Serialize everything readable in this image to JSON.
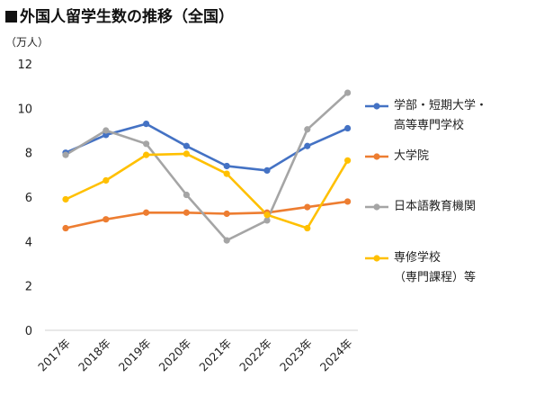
{
  "chart_data": {
    "type": "line",
    "title": "外国人留学生数の推移（全国）",
    "unit": "（万人）",
    "categories": [
      "2017年",
      "2018年",
      "2019年",
      "2020年",
      "2021年",
      "2022年",
      "2023年",
      "2024年"
    ],
    "ylim": [
      0,
      12
    ],
    "yticks": [
      0,
      2,
      4,
      6,
      8,
      10,
      12
    ],
    "grid": false,
    "legend_position": "right",
    "series": [
      {
        "name_lines": [
          "学部・短期大学・",
          "高等専門学校"
        ],
        "color": "#4472C4",
        "values": [
          8.0,
          8.8,
          9.3,
          8.3,
          7.4,
          7.2,
          8.3,
          9.1
        ]
      },
      {
        "name_lines": [
          "大学院"
        ],
        "color": "#ED7D31",
        "values": [
          4.6,
          5.0,
          5.3,
          5.3,
          5.25,
          5.3,
          5.55,
          5.8
        ]
      },
      {
        "name_lines": [
          "日本語教育機関"
        ],
        "color": "#A5A5A5",
        "values": [
          7.9,
          9.0,
          8.4,
          6.1,
          4.05,
          4.95,
          9.05,
          10.7
        ]
      },
      {
        "name_lines": [
          "専修学校",
          "（専門課程）等"
        ],
        "color": "#FFC000",
        "values": [
          5.9,
          6.75,
          7.9,
          7.95,
          7.05,
          5.2,
          4.6,
          7.65
        ]
      }
    ]
  }
}
